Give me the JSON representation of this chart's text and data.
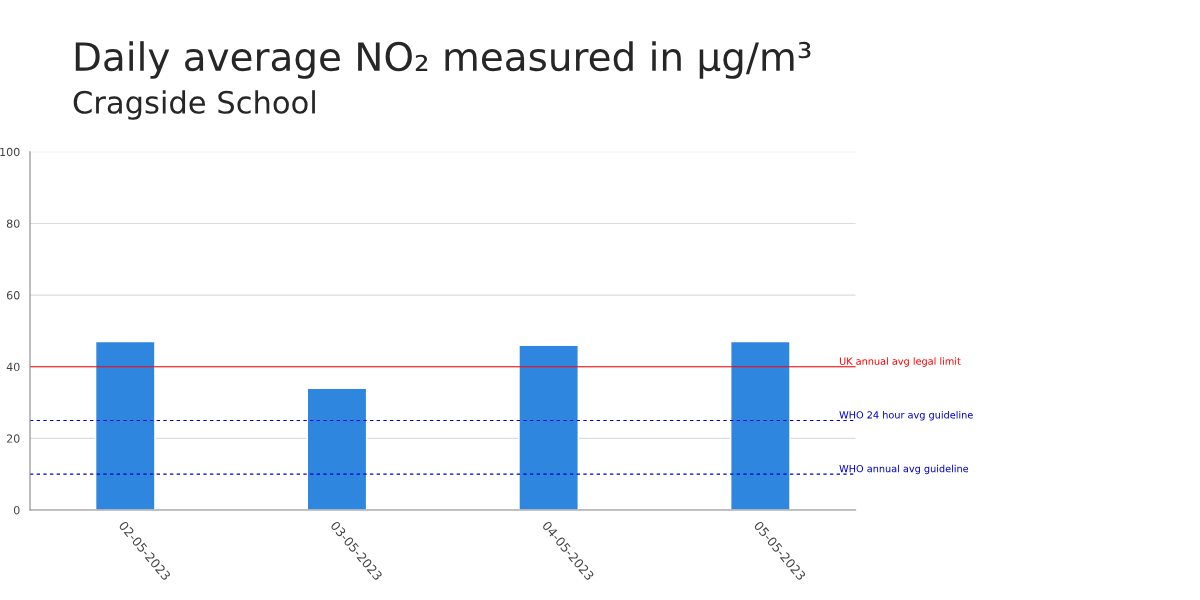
{
  "chart_data": {
    "type": "bar",
    "title": "Daily average NO₂ measured in µg/m³",
    "subtitle": "Cragside School",
    "categories": [
      "02-05-2023",
      "03-05-2023",
      "04-05-2023",
      "05-05-2023"
    ],
    "values": [
      47,
      34,
      46,
      47
    ],
    "color": "#2e86de",
    "ylim": [
      0,
      100
    ],
    "yticks": [
      0,
      20,
      40,
      60,
      80,
      100
    ],
    "grid": "y",
    "ref_lines": [
      {
        "axis": "y",
        "value": 40,
        "label": "UK annual avg legal limit",
        "color": "#ff0000",
        "line_style": "solid"
      },
      {
        "axis": "y",
        "value": 25,
        "label": "WHO 24 hour avg guideline",
        "color": "#0000cc",
        "line_style": "dashed"
      },
      {
        "axis": "y",
        "value": 10,
        "label": "WHO annual avg guideline",
        "color": "#0000cc",
        "line_style": "dashed"
      }
    ]
  }
}
